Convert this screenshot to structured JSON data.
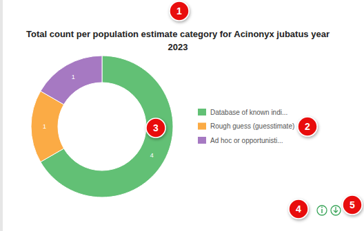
{
  "chart_data": {
    "type": "donut",
    "title": "Total count per population estimate category for Acinonyx jubatus year 2023",
    "categories": [
      "Database of known indi...",
      "Rough guess (guesstimate)",
      "Ad hoc or opportunisti..."
    ],
    "values": [
      4,
      1,
      1
    ],
    "colors": [
      "#62c075",
      "#fbab45",
      "#a679c2"
    ],
    "data_labels": true,
    "legend": "right",
    "annotations": [
      "1",
      "2",
      "3",
      "4",
      "5"
    ]
  }
}
